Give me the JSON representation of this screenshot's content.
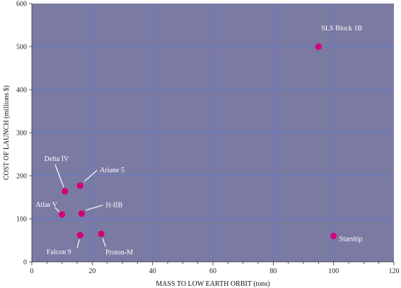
{
  "chart_data": {
    "type": "scatter",
    "title": "",
    "xlabel": "MASS TO LOW EARTH ORBIT (tons)",
    "ylabel": "COST OF LAUNCH (millions $)",
    "xlim": [
      0,
      120
    ],
    "ylim": [
      0,
      600
    ],
    "xticks": [
      0,
      20,
      40,
      60,
      80,
      100,
      120
    ],
    "yticks": [
      0,
      100,
      200,
      300,
      400,
      500,
      600
    ],
    "grid": true,
    "legend": "none",
    "colors": {
      "plot_background": "#7b7aa3",
      "grid": "#5b79cc",
      "point": "#d3007a",
      "label_text": "#ffffff"
    },
    "points": [
      {
        "label": "SLS Block 1B",
        "x": 95,
        "y": 500
      },
      {
        "label": "Starship",
        "x": 100,
        "y": 60
      },
      {
        "label": "Delta IV",
        "x": 11,
        "y": 164
      },
      {
        "label": "Ariane 5",
        "x": 16,
        "y": 177
      },
      {
        "label": "Atlas V",
        "x": 10,
        "y": 110
      },
      {
        "label": "H-IIB",
        "x": 16.5,
        "y": 112
      },
      {
        "label": "Falcon 9",
        "x": 16,
        "y": 62
      },
      {
        "label": "Proton-M",
        "x": 23,
        "y": 65
      }
    ]
  }
}
